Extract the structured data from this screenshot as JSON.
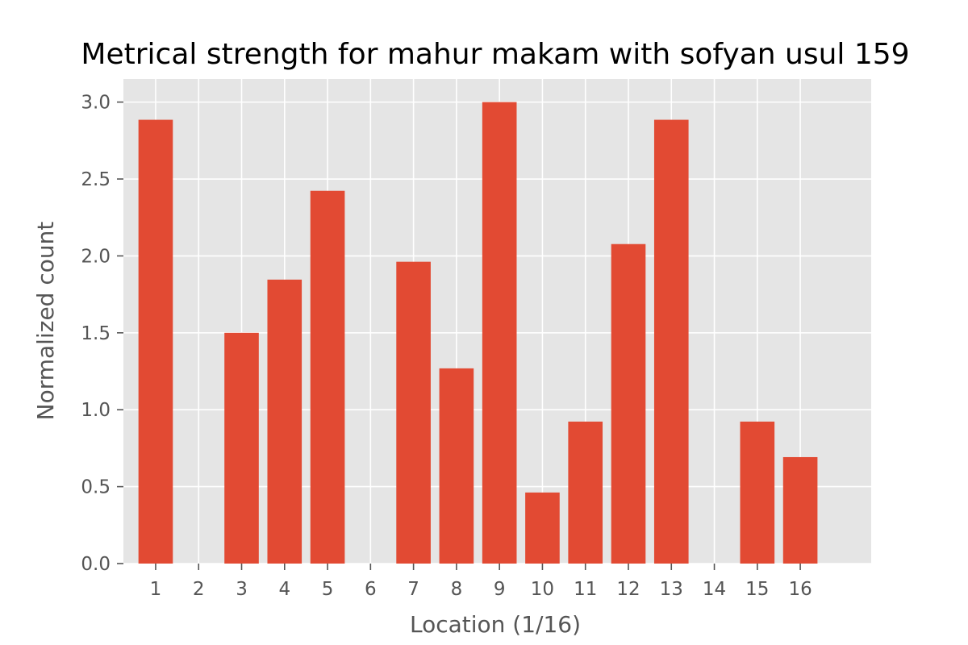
{
  "chart_data": {
    "type": "bar",
    "title": "Metrical strength for mahur makam with sofyan usul 159",
    "xlabel": "Location (1/16)",
    "ylabel": "Normalized count",
    "categories": [
      "1",
      "2",
      "3",
      "4",
      "5",
      "6",
      "7",
      "8",
      "9",
      "10",
      "11",
      "12",
      "13",
      "14",
      "15",
      "16"
    ],
    "values": [
      2.885,
      0,
      1.5,
      1.846,
      2.423,
      0,
      1.962,
      1.269,
      3.0,
      0.462,
      0.923,
      2.077,
      2.885,
      0,
      0.923,
      0.692
    ],
    "ylim": [
      0,
      3.15
    ],
    "yticks": [
      0.0,
      0.5,
      1.0,
      1.5,
      2.0,
      2.5,
      3.0
    ],
    "ytick_labels": [
      "0.0",
      "0.5",
      "1.0",
      "1.5",
      "2.0",
      "2.5",
      "3.0"
    ],
    "xlim": [
      0.25,
      17.65
    ],
    "grid": true,
    "style": "ggplot",
    "colors": {
      "bar": "#E24A33",
      "background": "#E5E5E5",
      "grid": "#FFFFFF",
      "tick": "#555555"
    }
  }
}
